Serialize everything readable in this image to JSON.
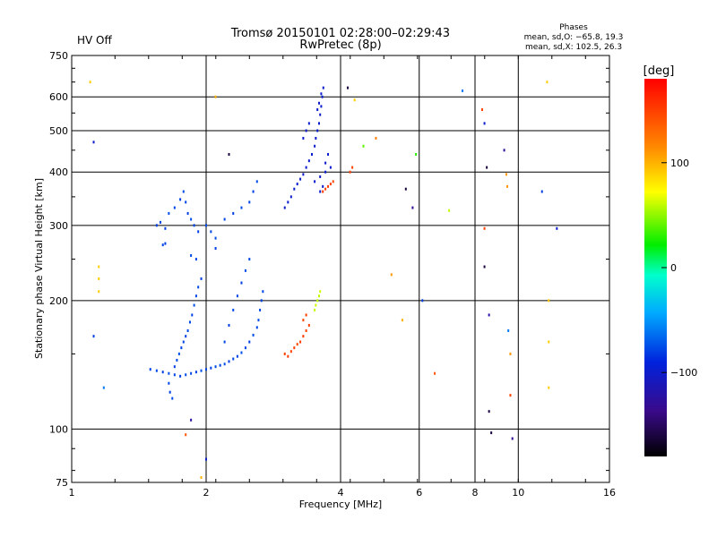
{
  "header": {
    "hv_status": "HV Off",
    "title": "Tromsø 20150101 02:28:00–02:29:43",
    "subtitle": "RwPretec (8p)",
    "phases_title": "Phases",
    "phases_line_o": "mean, sd,O: −65.8, 19.3",
    "phases_line_x": "mean, sd,X: 102.5, 26.3",
    "hv_color": "#cc0000"
  },
  "colorbar": {
    "unit_label": "[deg]",
    "tick_labels": [
      "100",
      "0",
      "−100"
    ],
    "tick_values": [
      100,
      0,
      -100
    ],
    "range": [
      -180,
      180
    ]
  },
  "chart_data": {
    "type": "scatter",
    "title": "Tromsø 20150101 02:28:00–02:29:43",
    "xlabel": "Frequency [MHz]",
    "ylabel": "Stationary phase Virtual Height [km]",
    "xscale": "log2",
    "yscale": "log",
    "xlim": [
      1,
      16
    ],
    "ylim": [
      75,
      750
    ],
    "x_ticks": [
      1,
      2,
      4,
      6,
      8,
      10,
      16
    ],
    "x_tick_labels": [
      "1",
      "2",
      "4",
      "6",
      "8",
      "10",
      "16"
    ],
    "y_ticks": [
      75,
      100,
      200,
      300,
      400,
      500,
      600,
      750
    ],
    "y_tick_labels": [
      "75",
      "100",
      "200",
      "300",
      "400",
      "500",
      "600",
      "750"
    ],
    "grid": true,
    "color_by": "phase_deg",
    "series": [
      {
        "name": "O-mode trace low",
        "points": [
          [
            1.5,
            138,
            -80
          ],
          [
            1.55,
            137,
            -78
          ],
          [
            1.6,
            136,
            -80
          ],
          [
            1.65,
            135,
            -75
          ],
          [
            1.7,
            134,
            -78
          ],
          [
            1.75,
            133,
            -80
          ],
          [
            1.8,
            134,
            -76
          ],
          [
            1.85,
            135,
            -78
          ],
          [
            1.9,
            136,
            -80
          ],
          [
            1.95,
            137,
            -74
          ],
          [
            2.0,
            138,
            -78
          ],
          [
            2.05,
            139,
            -80
          ],
          [
            2.1,
            140,
            -76
          ],
          [
            2.15,
            141,
            -78
          ],
          [
            2.2,
            142,
            -75
          ],
          [
            2.25,
            144,
            -80
          ],
          [
            2.3,
            146,
            -77
          ],
          [
            2.35,
            148,
            -79
          ],
          [
            2.4,
            151,
            -75
          ],
          [
            2.45,
            155,
            -78
          ],
          [
            2.5,
            160,
            -80
          ],
          [
            2.55,
            166,
            -76
          ],
          [
            2.6,
            173,
            -78
          ],
          [
            2.62,
            180,
            -75
          ],
          [
            2.64,
            190,
            -78
          ],
          [
            2.66,
            200,
            -80
          ],
          [
            2.68,
            210,
            -76
          ],
          [
            1.7,
            140,
            -80
          ],
          [
            1.72,
            145,
            -78
          ],
          [
            1.74,
            150,
            -75
          ],
          [
            1.76,
            155,
            -79
          ],
          [
            1.78,
            160,
            -77
          ],
          [
            1.8,
            165,
            -80
          ],
          [
            1.82,
            170,
            -76
          ],
          [
            1.84,
            178,
            -78
          ],
          [
            1.86,
            185,
            -80
          ],
          [
            1.88,
            195,
            -75
          ],
          [
            1.9,
            205,
            -78
          ],
          [
            1.92,
            215,
            -76
          ],
          [
            1.95,
            225,
            -80
          ],
          [
            1.65,
            128,
            -78
          ],
          [
            1.66,
            122,
            -80
          ],
          [
            1.68,
            118,
            -75
          ],
          [
            2.2,
            160,
            -78
          ],
          [
            2.25,
            175,
            -80
          ],
          [
            2.3,
            190,
            -76
          ],
          [
            2.35,
            205,
            -78
          ],
          [
            2.4,
            220,
            -80
          ],
          [
            2.45,
            235,
            -75
          ],
          [
            2.5,
            250,
            -78
          ]
        ]
      },
      {
        "name": "O-mode trace mid",
        "points": [
          [
            1.55,
            300,
            -80
          ],
          [
            1.58,
            305,
            -78
          ],
          [
            1.62,
            295,
            -80
          ],
          [
            1.65,
            320,
            -75
          ],
          [
            1.7,
            330,
            -78
          ],
          [
            1.75,
            345,
            -80
          ],
          [
            1.78,
            360,
            -76
          ],
          [
            1.8,
            340,
            -78
          ],
          [
            1.82,
            320,
            -80
          ],
          [
            1.85,
            310,
            -75
          ],
          [
            1.88,
            300,
            -78
          ],
          [
            1.92,
            290,
            -80
          ],
          [
            2.0,
            300,
            -76
          ],
          [
            2.05,
            290,
            -78
          ],
          [
            2.1,
            280,
            -75
          ],
          [
            2.2,
            310,
            -78
          ],
          [
            2.3,
            320,
            -80
          ],
          [
            2.4,
            330,
            -76
          ],
          [
            2.5,
            340,
            -78
          ],
          [
            2.55,
            360,
            -80
          ],
          [
            2.6,
            380,
            -75
          ],
          [
            1.6,
            270,
            -78
          ],
          [
            1.62,
            272,
            -80
          ],
          [
            1.85,
            255,
            -76
          ],
          [
            1.9,
            250,
            -78
          ],
          [
            2.1,
            265,
            -80
          ]
        ]
      },
      {
        "name": "O-mode trace high",
        "points": [
          [
            3.0,
            330,
            -100
          ],
          [
            3.05,
            340,
            -98
          ],
          [
            3.1,
            350,
            -102
          ],
          [
            3.15,
            365,
            -100
          ],
          [
            3.2,
            375,
            -98
          ],
          [
            3.25,
            385,
            -100
          ],
          [
            3.3,
            395,
            -102
          ],
          [
            3.35,
            410,
            -100
          ],
          [
            3.4,
            425,
            -98
          ],
          [
            3.45,
            440,
            -100
          ],
          [
            3.5,
            460,
            -102
          ],
          [
            3.52,
            480,
            -100
          ],
          [
            3.55,
            500,
            -98
          ],
          [
            3.58,
            520,
            -100
          ],
          [
            3.6,
            545,
            -102
          ],
          [
            3.62,
            570,
            -100
          ],
          [
            3.64,
            600,
            -98
          ],
          [
            3.66,
            630,
            -100
          ],
          [
            3.5,
            380,
            -100
          ],
          [
            3.6,
            390,
            -102
          ],
          [
            3.7,
            400,
            -98
          ],
          [
            3.8,
            410,
            -100
          ],
          [
            3.7,
            420,
            -102
          ],
          [
            3.75,
            440,
            -100
          ],
          [
            3.6,
            360,
            -98
          ],
          [
            3.65,
            370,
            -100
          ],
          [
            3.3,
            480,
            -102
          ],
          [
            3.35,
            500,
            -100
          ],
          [
            3.4,
            520,
            -98
          ],
          [
            3.55,
            560,
            -100
          ],
          [
            3.58,
            580,
            -102
          ],
          [
            3.62,
            610,
            -100
          ]
        ]
      },
      {
        "name": "X-mode trace",
        "points": [
          [
            3.0,
            150,
            150
          ],
          [
            3.05,
            148,
            152
          ],
          [
            3.1,
            152,
            148
          ],
          [
            3.15,
            155,
            150
          ],
          [
            3.2,
            158,
            146
          ],
          [
            3.25,
            160,
            150
          ],
          [
            3.3,
            165,
            152
          ],
          [
            3.35,
            170,
            148
          ],
          [
            3.4,
            175,
            150
          ],
          [
            3.3,
            180,
            146
          ],
          [
            3.35,
            185,
            150
          ],
          [
            3.5,
            190,
            60
          ],
          [
            3.52,
            195,
            62
          ],
          [
            3.55,
            200,
            58
          ],
          [
            3.58,
            205,
            60
          ],
          [
            3.6,
            210,
            62
          ],
          [
            3.65,
            360,
            150
          ],
          [
            3.7,
            365,
            148
          ],
          [
            3.75,
            370,
            152
          ],
          [
            3.8,
            375,
            150
          ],
          [
            3.85,
            380,
            146
          ],
          [
            4.2,
            400,
            150
          ],
          [
            4.25,
            410,
            148
          ]
        ]
      },
      {
        "name": "Scattered echoes",
        "points": [
          [
            1.1,
            650,
            90
          ],
          [
            1.12,
            470,
            -100
          ],
          [
            1.15,
            240,
            90
          ],
          [
            1.15,
            225,
            90
          ],
          [
            1.15,
            210,
            90
          ],
          [
            1.12,
            165,
            -80
          ],
          [
            1.18,
            125,
            -60
          ],
          [
            1.8,
            97,
            140
          ],
          [
            1.85,
            105,
            -120
          ],
          [
            1.95,
            77,
            100
          ],
          [
            2.0,
            85,
            -100
          ],
          [
            2.1,
            600,
            100
          ],
          [
            2.25,
            440,
            -160
          ],
          [
            4.15,
            630,
            -160
          ],
          [
            4.3,
            590,
            90
          ],
          [
            4.5,
            460,
            40
          ],
          [
            4.8,
            480,
            120
          ],
          [
            5.2,
            230,
            110
          ],
          [
            5.5,
            180,
            100
          ],
          [
            5.6,
            365,
            -160
          ],
          [
            5.8,
            330,
            -130
          ],
          [
            5.9,
            440,
            30
          ],
          [
            6.1,
            200,
            -80
          ],
          [
            6.5,
            135,
            140
          ],
          [
            7.0,
            325,
            60
          ],
          [
            7.5,
            620,
            -60
          ],
          [
            8.3,
            560,
            150
          ],
          [
            8.4,
            520,
            -100
          ],
          [
            8.5,
            410,
            -160
          ],
          [
            8.4,
            295,
            150
          ],
          [
            8.4,
            240,
            -160
          ],
          [
            8.6,
            185,
            -120
          ],
          [
            8.6,
            110,
            -160
          ],
          [
            8.7,
            98,
            -160
          ],
          [
            9.3,
            450,
            -130
          ],
          [
            9.4,
            395,
            110
          ],
          [
            9.45,
            370,
            110
          ],
          [
            9.5,
            170,
            -60
          ],
          [
            9.6,
            150,
            110
          ],
          [
            9.6,
            120,
            150
          ],
          [
            9.7,
            95,
            -130
          ],
          [
            11.6,
            650,
            90
          ],
          [
            11.7,
            200,
            90
          ],
          [
            11.7,
            160,
            90
          ],
          [
            11.7,
            125,
            90
          ],
          [
            12.2,
            295,
            -100
          ],
          [
            11.3,
            360,
            -80
          ]
        ]
      }
    ]
  }
}
